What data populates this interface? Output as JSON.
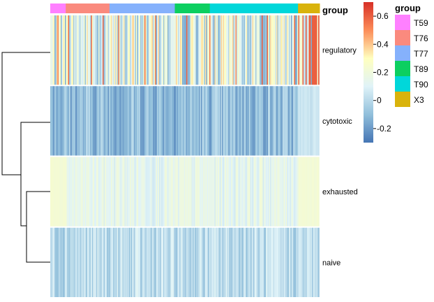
{
  "chart_data": {
    "type": "heatmap",
    "title": "",
    "rows": [
      "regulatory",
      "cytotoxic",
      "exhausted",
      "naive"
    ],
    "annotation": {
      "title": "group",
      "groups": [
        {
          "name": "T59",
          "color": "#FF80FF",
          "fraction": 0.0575
        },
        {
          "name": "T76",
          "color": "#FA8A7E",
          "fraction": 0.1625
        },
        {
          "name": "T77",
          "color": "#85B1FC",
          "fraction": 0.2425
        },
        {
          "name": "T89",
          "color": "#0CCF60",
          "fraction": 0.13
        },
        {
          "name": "T90",
          "color": "#00D7DA",
          "fraction": 0.3275
        },
        {
          "name": "X3",
          "color": "#D9B30C",
          "fraction": 0.08
        }
      ]
    },
    "row_mean_values": [
      0.14,
      -0.12,
      0.18,
      0.02
    ],
    "color_scale": {
      "min": -0.3,
      "max": 0.7,
      "stops": [
        "#4575B4",
        "#91BFDB",
        "#E0F3F8",
        "#FFFFBF",
        "#FC8D59",
        "#D73027"
      ],
      "ticks": [
        "0.6",
        "0.4",
        "0.2",
        "0",
        "-0.2"
      ],
      "tick_values": [
        0.6,
        0.4,
        0.2,
        0,
        -0.2
      ]
    },
    "dendrogram": "regulatory joins ((cytotoxic), (exhausted, naive))"
  }
}
